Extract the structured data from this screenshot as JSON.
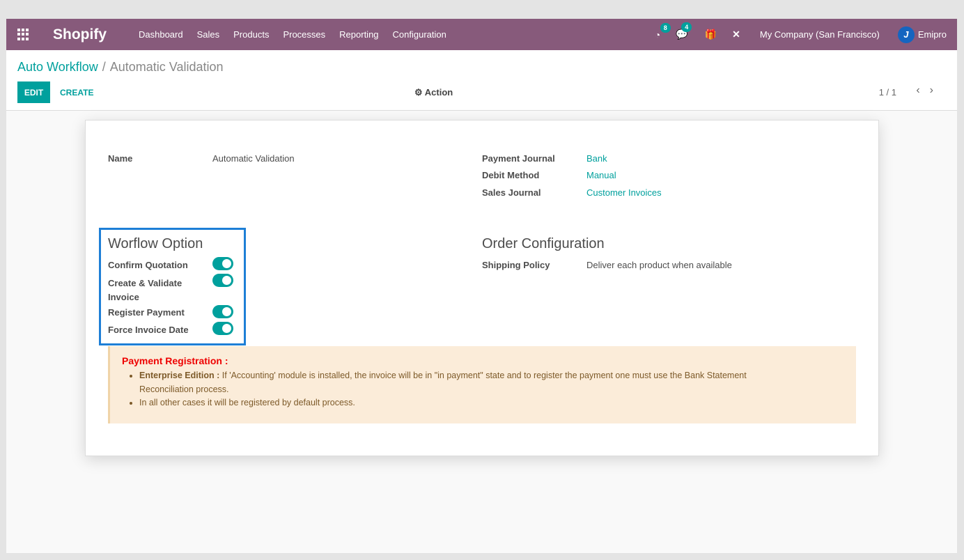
{
  "nav": {
    "brand": "Shopify",
    "menu": [
      "Dashboard",
      "Sales",
      "Products",
      "Processes",
      "Reporting",
      "Configuration"
    ],
    "activity_count": "8",
    "messages_count": "4",
    "company": "My Company (San Francisco)",
    "user": "Emipro"
  },
  "breadcrumb": {
    "parent": "Auto Workflow",
    "separator": "/",
    "current": "Automatic Validation"
  },
  "toolbar": {
    "edit": "EDIT",
    "create": "CREATE",
    "action": "Action",
    "pager": "1 / 1"
  },
  "form": {
    "name_label": "Name",
    "name_value": "Automatic Validation",
    "payment_journal_label": "Payment Journal",
    "payment_journal": "Bank",
    "debit_method_label": "Debit Method",
    "debit_method": "Manual",
    "sales_journal_label": "Sales Journal",
    "sales_journal": "Customer Invoices",
    "workflow_title": "Worflow Option",
    "options": [
      {
        "label": "Confirm Quotation",
        "on": true
      },
      {
        "label": "Create & Validate Invoice",
        "on": true
      },
      {
        "label": "Register Payment",
        "on": true
      },
      {
        "label": "Force Invoice Date",
        "on": true
      }
    ],
    "order_title": "Order Configuration",
    "shipping_label": "Shipping Policy",
    "shipping_value": "Deliver each product when available"
  },
  "alert": {
    "title": "Payment Registration :",
    "item1_bold": "Enterprise Edition :",
    "item1": " If 'Accounting' module is installed, the invoice will be in \"in payment\" state and to register the payment one must use the Bank Statement Reconciliation process.",
    "item2": "In all other cases it will be registered by default process."
  },
  "colors": {
    "navbar": "#875a7b",
    "accent": "#00a09d"
  }
}
